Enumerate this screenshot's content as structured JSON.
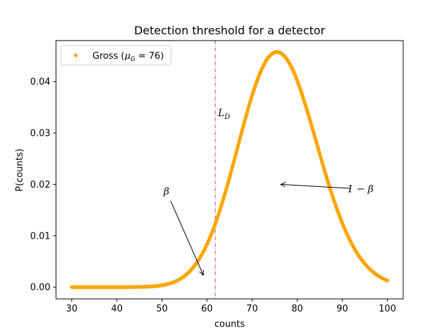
{
  "chart_data": {
    "type": "scatter",
    "title": "Detection threshold for a detector",
    "xlabel": "counts",
    "ylabel": "P(counts)",
    "xlim": [
      26.5,
      103.5
    ],
    "ylim": [
      -0.0023,
      0.048
    ],
    "xticks": [
      30,
      40,
      50,
      60,
      70,
      80,
      90,
      100
    ],
    "yticks": [
      0.0,
      0.01,
      0.02,
      0.03,
      0.04
    ],
    "ytick_labels": [
      "0.00",
      "0.01",
      "0.02",
      "0.03",
      "0.04"
    ],
    "grid": false,
    "legend": {
      "position": "upper-left",
      "entries": [
        {
          "name": "Gross (μ_G = 76)",
          "color": "#ffa500",
          "marker": "dot"
        }
      ]
    },
    "series": [
      {
        "name": "Gross (μ_G = 76)",
        "color": "#ffa500",
        "distribution": "poisson",
        "mu": 76,
        "x_range": [
          30,
          100
        ],
        "n_points": 701
      }
    ],
    "threshold_line": {
      "label": "L_D",
      "x": 61.8,
      "color": "#d62728",
      "style": "dashdot"
    },
    "annotations": [
      {
        "text": "β",
        "xytext": [
          51.0,
          0.018
        ],
        "xy": [
          59.2,
          0.0023
        ]
      },
      {
        "text": "1 − β",
        "xytext": [
          94.0,
          0.0185
        ],
        "xy": [
          76.3,
          0.02
        ]
      }
    ]
  }
}
